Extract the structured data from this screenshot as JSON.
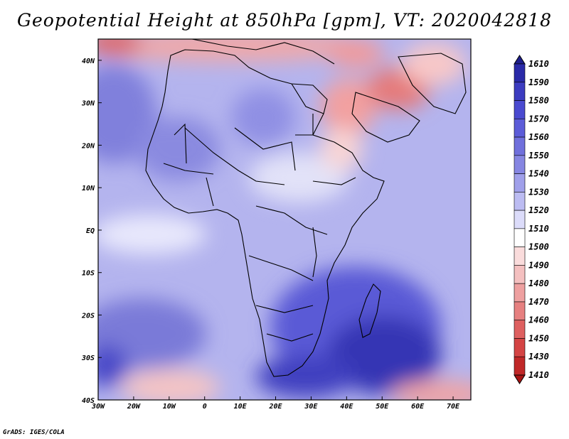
{
  "title": "Geopotential Height at 850hPa [gpm], VT: 2020042818",
  "credit": "GrADS: IGES/COLA",
  "map": {
    "lon_ticks": [
      "30W",
      "20W",
      "10W",
      "0",
      "10E",
      "20E",
      "30E",
      "40E",
      "50E",
      "60E",
      "70E"
    ],
    "lon_values": [
      -30,
      -20,
      -10,
      0,
      10,
      20,
      30,
      40,
      50,
      60,
      70
    ],
    "lat_ticks": [
      "40N",
      "30N",
      "20N",
      "10N",
      "EQ",
      "10S",
      "20S",
      "30S",
      "40S"
    ],
    "lat_values": [
      40,
      30,
      20,
      10,
      0,
      -10,
      -20,
      -30,
      -40
    ],
    "lon_range": [
      -30,
      75
    ],
    "lat_range": [
      -40,
      45
    ]
  },
  "colorbar": {
    "labels": [
      "1610",
      "1590",
      "1580",
      "1570",
      "1560",
      "1550",
      "1540",
      "1530",
      "1520",
      "1510",
      "1500",
      "1490",
      "1480",
      "1470",
      "1460",
      "1450",
      "1430",
      "1410"
    ],
    "colors": [
      "#1e1e8c",
      "#2a2aa8",
      "#3c3cc0",
      "#4a4ad0",
      "#5c5cd8",
      "#7070dc",
      "#8686e2",
      "#a0a0ea",
      "#bcbcf2",
      "#dcdcfa",
      "#ffffff",
      "#fadcdc",
      "#f4c0c0",
      "#eea0a0",
      "#e68080",
      "#de6060",
      "#d44444",
      "#c02828",
      "#a81414"
    ]
  }
}
